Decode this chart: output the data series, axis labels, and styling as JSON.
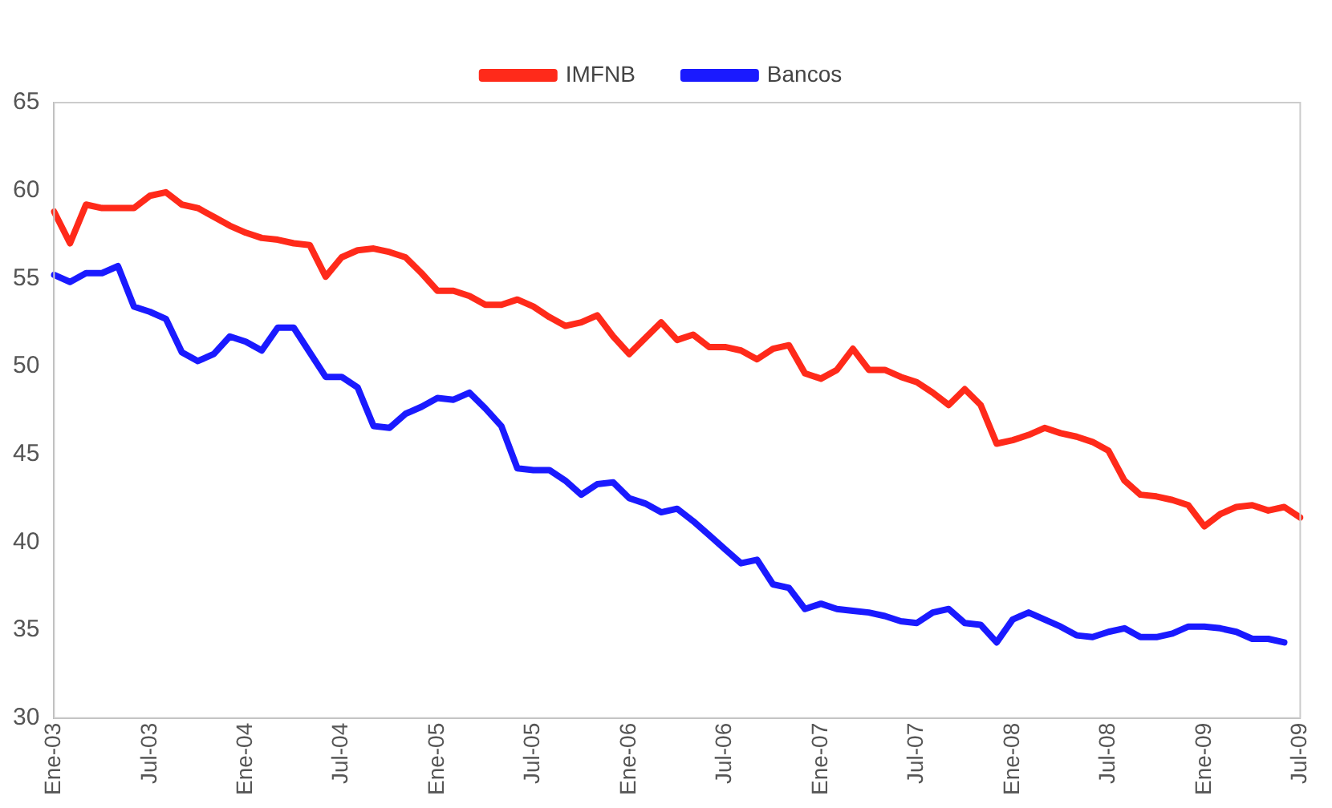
{
  "chart_data": {
    "type": "line",
    "categories": [
      "Ene-03",
      null,
      null,
      null,
      null,
      null,
      "Jul-03",
      null,
      null,
      null,
      null,
      null,
      "Ene-04",
      null,
      null,
      null,
      null,
      null,
      "Jul-04",
      null,
      null,
      null,
      null,
      null,
      "Ene-05",
      null,
      null,
      null,
      null,
      null,
      "Jul-05",
      null,
      null,
      null,
      null,
      null,
      "Ene-06",
      null,
      null,
      null,
      null,
      null,
      "Jul-06",
      null,
      null,
      null,
      null,
      null,
      "Ene-07",
      null,
      null,
      null,
      null,
      null,
      "Jul-07",
      null,
      null,
      null,
      null,
      null,
      "Ene-08",
      null,
      null,
      null,
      null,
      null,
      "Jul-08",
      null,
      null,
      null,
      null,
      null,
      "Ene-09",
      null,
      null,
      null,
      null,
      null,
      "Jul-09"
    ],
    "series": [
      {
        "name": "IMFNB",
        "color": "#ff2a1a",
        "values": [
          58.8,
          57,
          59.2,
          59,
          59,
          59,
          59.7,
          59.9,
          59.2,
          59,
          58.5,
          58,
          57.6,
          57.3,
          57.2,
          57,
          56.9,
          55.1,
          56.2,
          56.6,
          56.7,
          56.5,
          56.2,
          55.3,
          54.3,
          54.3,
          54,
          53.5,
          53.5,
          53.8,
          53.4,
          52.8,
          52.3,
          52.5,
          52.9,
          51.7,
          50.7,
          51.6,
          52.5,
          51.5,
          51.8,
          51.1,
          51.1,
          50.9,
          50.4,
          51,
          51.2,
          49.6,
          49.3,
          49.8,
          51,
          49.8,
          49.8,
          49.4,
          49.1,
          48.5,
          47.8,
          48.7,
          47.8,
          45.6,
          45.8,
          46.1,
          46.5,
          46.2,
          46,
          45.7,
          45.2,
          43.5,
          42.7,
          42.6,
          42.4,
          42.1,
          40.9,
          41.6,
          42,
          42.1,
          41.8,
          42,
          41.4
        ]
      },
      {
        "name": "Bancos",
        "color": "#1a1aff",
        "values": [
          55.2,
          54.8,
          55.3,
          55.3,
          55.7,
          53.4,
          53.1,
          52.7,
          50.8,
          50.3,
          50.7,
          51.7,
          51.4,
          50.9,
          52.2,
          52.2,
          50.8,
          49.4,
          49.4,
          48.8,
          46.6,
          46.5,
          47.3,
          47.7,
          48.2,
          48.1,
          48.5,
          47.6,
          46.6,
          44.2,
          44.1,
          44.1,
          43.5,
          42.7,
          43.3,
          43.4,
          42.5,
          42.2,
          41.7,
          41.9,
          41.2,
          40.4,
          39.6,
          38.8,
          39,
          37.6,
          37.4,
          36.2,
          36.5,
          36.2,
          36.1,
          36,
          35.8,
          35.5,
          35.4,
          36,
          36.2,
          35.4,
          35.3,
          34.3,
          35.6,
          36,
          35.6,
          35.2,
          34.7,
          34.6,
          34.9,
          35.1,
          34.6,
          34.6,
          34.8,
          35.2,
          35.2,
          35.1,
          34.9,
          34.5,
          34.5,
          34.3,
          null
        ]
      }
    ],
    "ylim": [
      30,
      65
    ],
    "yticks": [
      30,
      35,
      40,
      45,
      50,
      55,
      60,
      65
    ],
    "grid": false,
    "legend": "top",
    "marker": "none",
    "line_style": "solid"
  }
}
